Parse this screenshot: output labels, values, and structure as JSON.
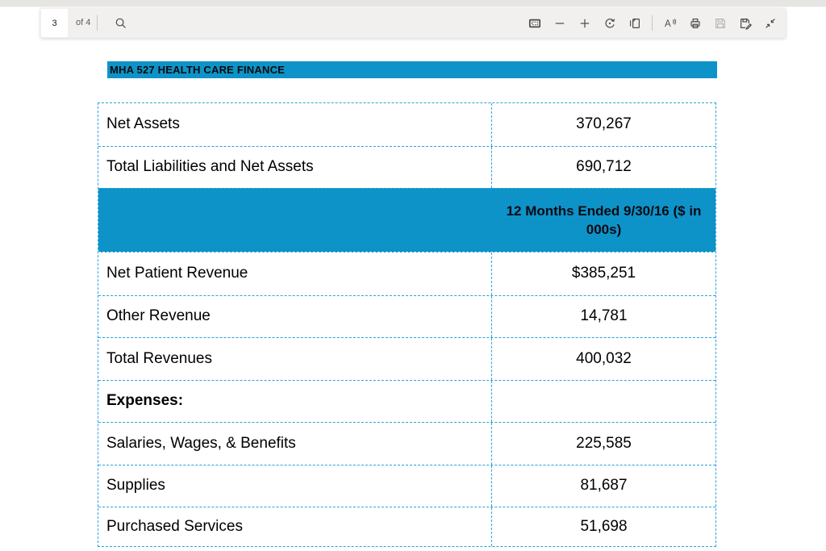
{
  "toolbar": {
    "page_number": "3",
    "page_count_label": "of 4",
    "left_icons": [
      "search-icon"
    ],
    "right_icons": [
      "fit-to-page-icon",
      "zoom-out-icon",
      "zoom-in-icon",
      "rotate-icon",
      "page-view-icon",
      "read-aloud-icon",
      "print-icon",
      "save-icon",
      "save-as-icon",
      "collapse-toolbar-icon"
    ],
    "read_aloud_letter": "A"
  },
  "document": {
    "title": "MHA 527 HEALTH CARE FINANCE",
    "table": {
      "rows": [
        {
          "type": "data",
          "label": "Net Assets",
          "value": "370,267"
        },
        {
          "type": "data",
          "label": "Total Liabilities and Net Assets",
          "value": "690,712"
        },
        {
          "type": "header",
          "label": "",
          "value": "12 Months Ended 9/30/16 ($ in 000s)"
        },
        {
          "type": "data",
          "label": "Net Patient Revenue",
          "value": "$385,251"
        },
        {
          "type": "data",
          "label": "Other Revenue",
          "value": "14,781"
        },
        {
          "type": "data",
          "label": "Total Revenues",
          "value": "400,032"
        },
        {
          "type": "data",
          "label": "Expenses:",
          "value": "",
          "bold": true
        },
        {
          "type": "data",
          "label": "Salaries, Wages, & Benefits",
          "value": "225,585"
        },
        {
          "type": "data",
          "label": "Supplies",
          "value": "81,687"
        },
        {
          "type": "data",
          "label": "Purchased Services",
          "value": "51,698"
        }
      ]
    }
  },
  "colors": {
    "accent_blue": "#0e93c8",
    "dash_border": "#2ba3db",
    "toolbar_bg": "#f1f0ee",
    "top_strip_bg": "#e7e5e2"
  }
}
